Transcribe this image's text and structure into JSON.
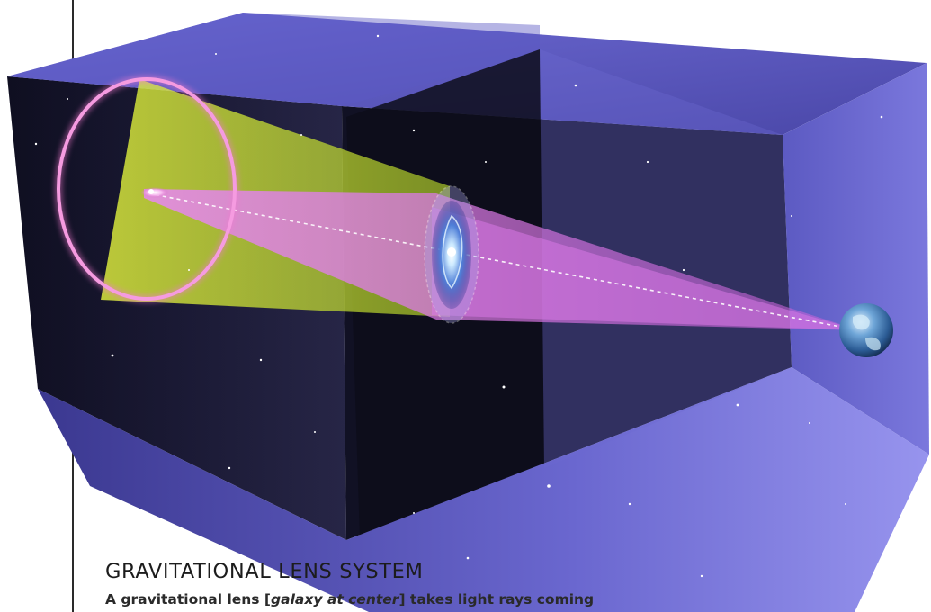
{
  "caption": {
    "title": "GRAVITATIONAL LENS SYSTEM",
    "body_lead": "A gravitational lens [",
    "body_emphasis": "galaxy at center",
    "body_tail": "] takes light rays coming"
  },
  "colors": {
    "box_face": "#5a57c2",
    "box_dark": "#0b0b14",
    "ring": "#f27ad0",
    "light_cone_outer": "#d6f03a",
    "light_cone_inner": "#c86be0",
    "sightline": "#ffffff"
  },
  "icons": [
    "einstein-ring-icon",
    "spiral-galaxy-icon",
    "earth-icon",
    "quasar-source-icon"
  ]
}
